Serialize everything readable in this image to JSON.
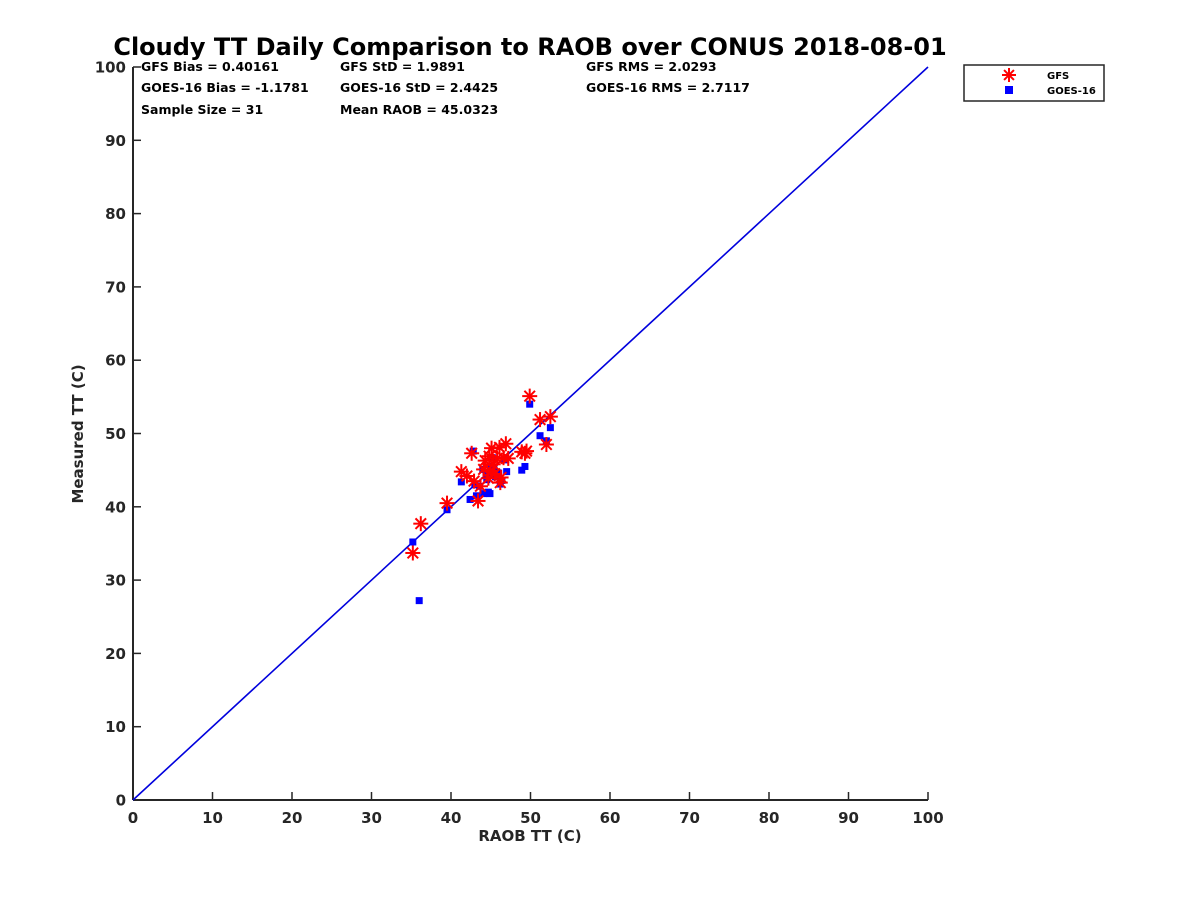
{
  "chart_data": {
    "type": "scatter",
    "title": "Cloudy TT Daily Comparison to RAOB over CONUS 2018-08-01",
    "xlabel": "RAOB TT (C)",
    "ylabel": "Measured TT (C)",
    "xlim": [
      0,
      100
    ],
    "ylim": [
      0,
      100
    ],
    "xticks": [
      "0",
      "10",
      "20",
      "30",
      "40",
      "50",
      "60",
      "70",
      "80",
      "90",
      "100"
    ],
    "yticks": [
      "0",
      "10",
      "20",
      "30",
      "40",
      "50",
      "60",
      "70",
      "80",
      "90",
      "100"
    ],
    "reference_line": {
      "x": [
        0,
        100
      ],
      "y": [
        0,
        100
      ],
      "color": "#0000dd"
    },
    "legend_position": "top-right, outside axes",
    "stats": [
      [
        "GFS Bias = 0.40161",
        "GFS StD = 1.9891",
        "GFS RMS = 2.0293"
      ],
      [
        "GOES-16 Bias = -1.1781",
        "GOES-16 StD = 2.4425",
        "GOES-16 RMS = 2.7117"
      ],
      [
        "Sample Size = 31",
        "Mean RAOB = 45.0323",
        ""
      ]
    ],
    "series": [
      {
        "name": "GFS",
        "marker": "asterisk",
        "color": "#ff0000",
        "points": [
          [
            35.2,
            33.7
          ],
          [
            36.2,
            37.7
          ],
          [
            39.5,
            40.5
          ],
          [
            41.3,
            44.8
          ],
          [
            42.0,
            44.2
          ],
          [
            42.6,
            47.3
          ],
          [
            42.9,
            43.5
          ],
          [
            43.4,
            40.8
          ],
          [
            43.7,
            42.8
          ],
          [
            44.1,
            45.1
          ],
          [
            44.3,
            46.3
          ],
          [
            44.7,
            43.9
          ],
          [
            44.8,
            46.9
          ],
          [
            45.1,
            48.0
          ],
          [
            45.3,
            45.8
          ],
          [
            45.5,
            44.5
          ],
          [
            45.8,
            46.6
          ],
          [
            46.1,
            48.1
          ],
          [
            46.2,
            43.3
          ],
          [
            46.3,
            44.0
          ],
          [
            46.6,
            46.7
          ],
          [
            46.9,
            48.6
          ],
          [
            47.2,
            46.6
          ],
          [
            48.9,
            47.5
          ],
          [
            49.3,
            47.3
          ],
          [
            49.5,
            47.6
          ],
          [
            49.9,
            55.1
          ],
          [
            51.2,
            51.9
          ],
          [
            52.0,
            48.5
          ],
          [
            52.5,
            52.3
          ],
          [
            45.0,
            44.9
          ]
        ]
      },
      {
        "name": "GOES-16",
        "marker": "square",
        "color": "#0000ff",
        "points": [
          [
            35.2,
            35.2
          ],
          [
            36.0,
            27.2
          ],
          [
            39.5,
            39.6
          ],
          [
            41.3,
            43.4
          ],
          [
            42.4,
            41.0
          ],
          [
            42.8,
            47.6
          ],
          [
            43.0,
            43.0
          ],
          [
            43.2,
            41.5
          ],
          [
            43.6,
            42.8
          ],
          [
            44.0,
            45.1
          ],
          [
            44.1,
            41.8
          ],
          [
            44.4,
            44.4
          ],
          [
            44.5,
            43.7
          ],
          [
            44.7,
            42.0
          ],
          [
            44.9,
            41.8
          ],
          [
            45.0,
            44.7
          ],
          [
            45.2,
            46.7
          ],
          [
            45.4,
            45.1
          ],
          [
            45.6,
            44.1
          ],
          [
            46.0,
            44.6
          ],
          [
            46.2,
            43.1
          ],
          [
            46.4,
            43.6
          ],
          [
            46.7,
            46.4
          ],
          [
            47.0,
            44.8
          ],
          [
            48.9,
            45.0
          ],
          [
            49.3,
            45.5
          ],
          [
            49.9,
            54.0
          ],
          [
            51.2,
            49.7
          ],
          [
            52.0,
            49.0
          ],
          [
            52.5,
            50.8
          ],
          [
            45.1,
            45.5
          ]
        ]
      }
    ]
  }
}
